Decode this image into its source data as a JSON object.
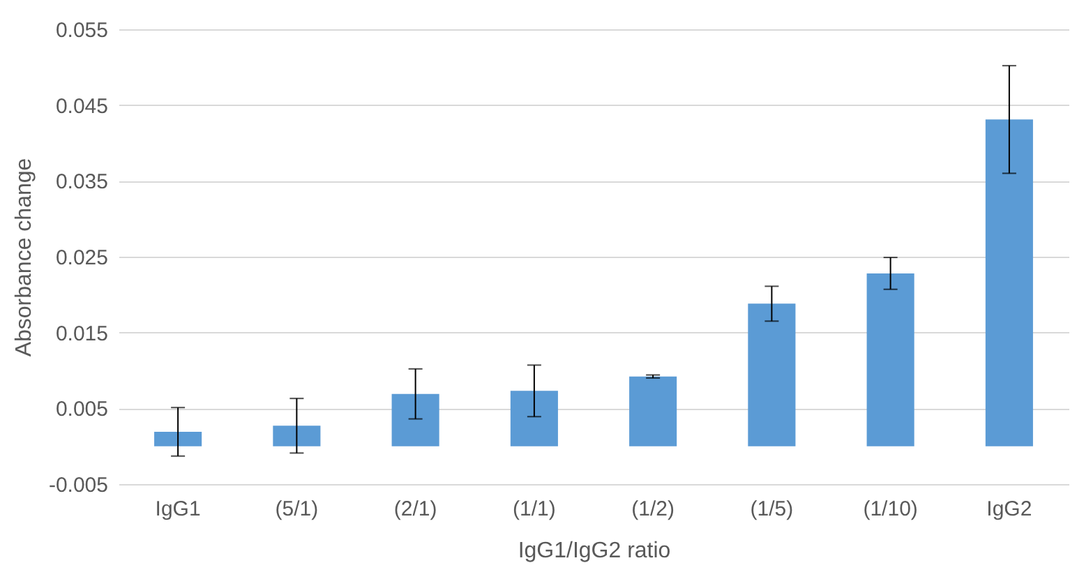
{
  "chart_data": {
    "type": "bar",
    "xlabel": "IgG1/IgG2 ratio",
    "ylabel": "Absorbance change",
    "categories": [
      "IgG1",
      "(5/1)",
      "(2/1)",
      "(1/1)",
      "(1/2)",
      "(1/5)",
      "(1/10)",
      "IgG2"
    ],
    "values": [
      0.0019,
      0.0027,
      0.0069,
      0.0073,
      0.0092,
      0.0188,
      0.0228,
      0.0431
    ],
    "errors": [
      0.0032,
      0.0036,
      0.0033,
      0.0034,
      0.0002,
      0.0023,
      0.0021,
      0.0071
    ],
    "color": "#5b9bd5",
    "ylim": [
      -0.005,
      0.055
    ],
    "yticks": [
      -0.005,
      0.005,
      0.015,
      0.025,
      0.035,
      0.045,
      0.055
    ],
    "grid": "y"
  }
}
